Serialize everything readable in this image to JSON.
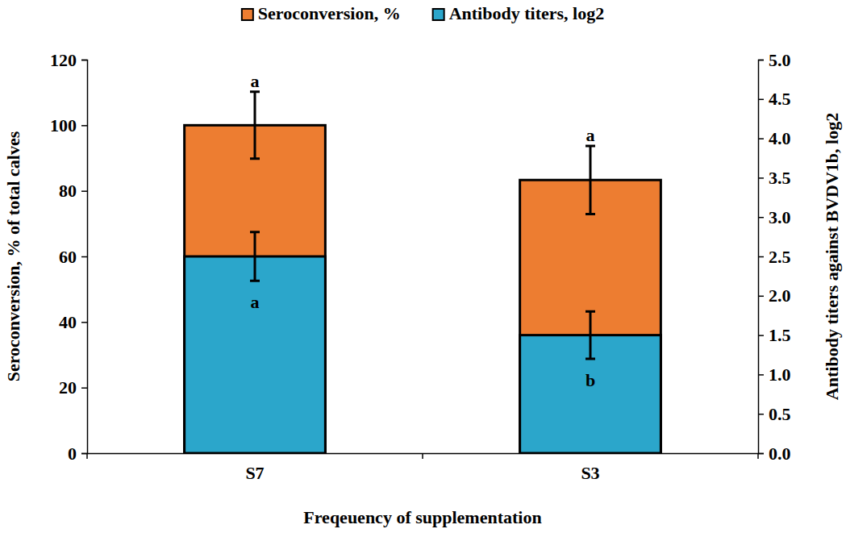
{
  "chart_data": {
    "type": "bar",
    "x_label": "Freqeuency of supplementation",
    "y_label": "Seroconversion, % of total calves",
    "y2_label": "Antibody titers against BVDV1b, log2",
    "categories": [
      "S7",
      "S3"
    ],
    "series": [
      {
        "name": "Seroconversion, %",
        "color": "#ED7D31",
        "values": [
          100,
          83.3
        ],
        "errors": [
          10.2,
          10.4
        ],
        "significance": [
          "a",
          "a"
        ]
      },
      {
        "name": "Antibody titers, log2",
        "color": "#2BA6CB",
        "values": [
          2.5,
          1.5
        ],
        "errors": [
          0.31,
          0.3
        ],
        "significance": [
          "a",
          "b"
        ],
        "axis": "y2"
      }
    ],
    "ylim": [
      0,
      120
    ],
    "yticks": [
      0,
      20,
      40,
      60,
      80,
      100,
      120
    ],
    "y2lim": [
      0,
      5
    ],
    "y2ticks": [
      {
        "value": 0,
        "label": "0.0"
      },
      0.5,
      {
        "value": 1,
        "label": "1.0"
      },
      1.5,
      {
        "value": 2,
        "label": "2.0"
      },
      2.5,
      {
        "value": 3,
        "label": "3.0"
      },
      3.5,
      {
        "value": 4,
        "label": "4.0"
      },
      4.5,
      {
        "value": 5,
        "label": "5.0"
      }
    ],
    "legend": "top",
    "grid": false,
    "stacked": false
  }
}
